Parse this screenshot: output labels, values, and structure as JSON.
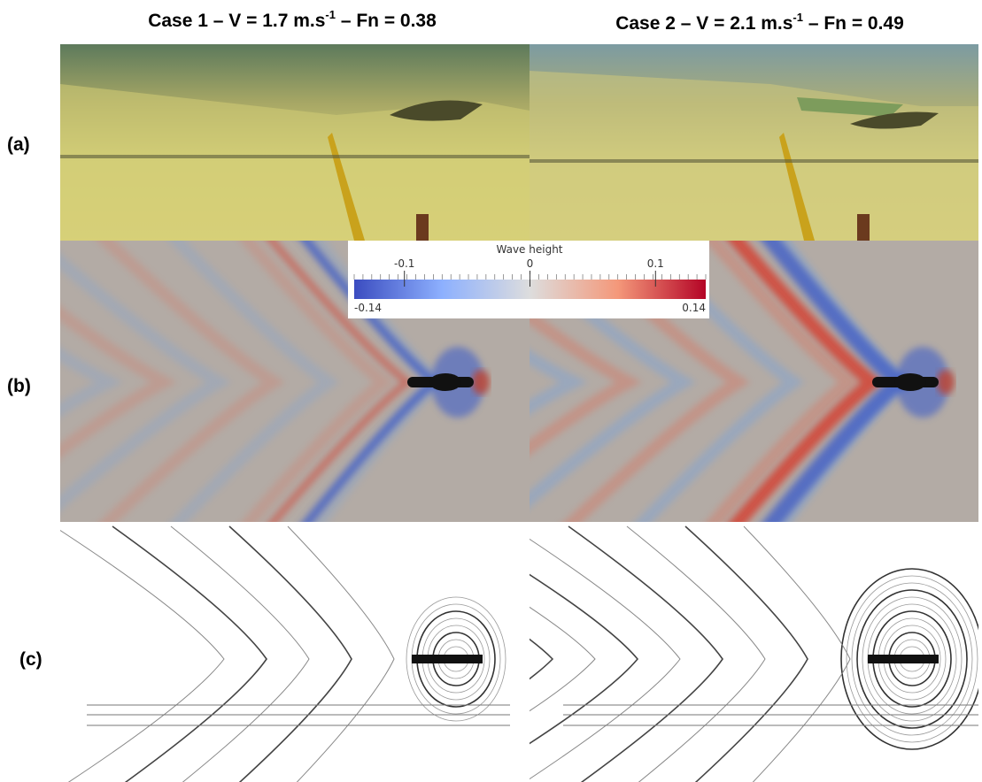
{
  "header": {
    "columns": [
      {
        "prefix": "Case 1 – V = 1.7 m.s",
        "superscript": "-1",
        "suffix": " – Fn = 0.38"
      },
      {
        "prefix": "Case 2 – V = 2.1 m.s",
        "superscript": "-1",
        "suffix": " – Fn = 0.49"
      }
    ]
  },
  "rows": [
    {
      "label": "(a)"
    },
    {
      "label": "(b)"
    },
    {
      "label": "(c)"
    }
  ],
  "colorbar": {
    "title": "Wave height",
    "lim": [
      -0.14,
      0.14
    ],
    "ticks": [
      -0.1,
      0,
      0.1
    ]
  }
}
